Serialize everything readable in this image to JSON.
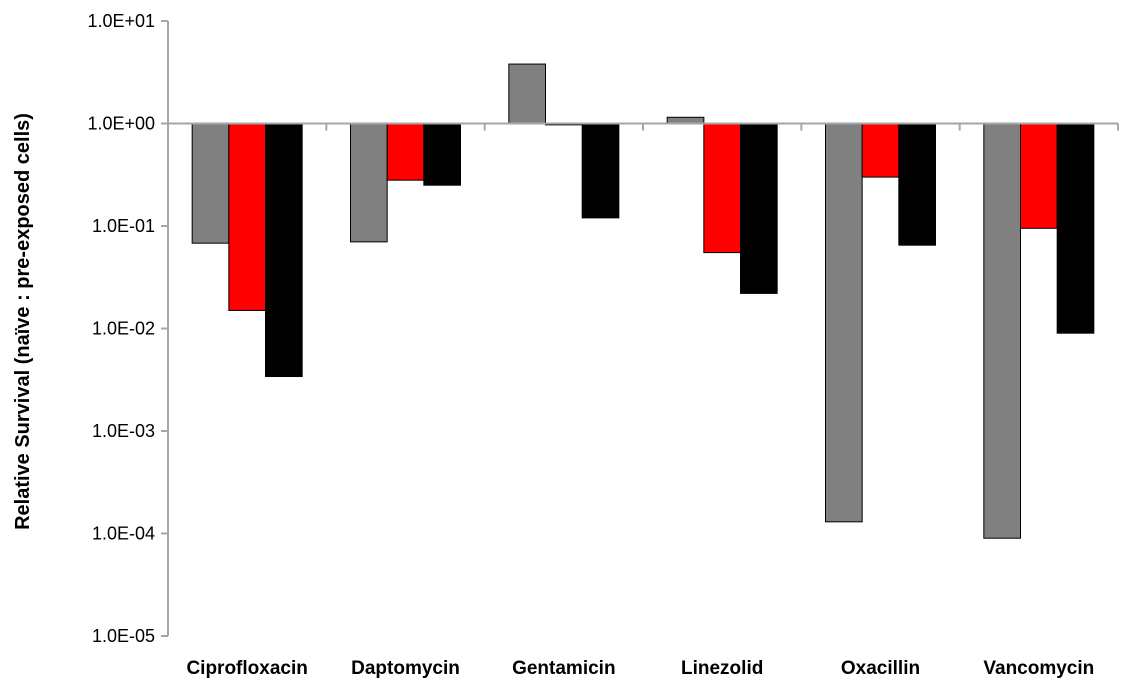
{
  "chart_data": {
    "type": "bar",
    "yscale": "log",
    "baseline": 1,
    "title": "",
    "xlabel": "",
    "ylabel": "Relative Survival (naïve : pre-exposed cells)",
    "ylim": [
      1e-05,
      10
    ],
    "yticks": [
      {
        "value": 10,
        "label": "1.0E+01"
      },
      {
        "value": 1,
        "label": "1.0E+00"
      },
      {
        "value": 0.1,
        "label": "1.0E-01"
      },
      {
        "value": 0.01,
        "label": "1.0E-02"
      },
      {
        "value": 0.001,
        "label": "1.0E-03"
      },
      {
        "value": 0.0001,
        "label": "1.0E-04"
      },
      {
        "value": 1e-05,
        "label": "1.0E-05"
      }
    ],
    "grid": false,
    "legend": "none",
    "categories": [
      "Ciprofloxacin",
      "Daptomycin",
      "Gentamicin",
      "Linezolid",
      "Oxacillin",
      "Vancomycin"
    ],
    "series": [
      {
        "color": "#808080",
        "values": [
          0.068,
          0.07,
          3.8,
          1.15,
          0.00013,
          9e-05
        ]
      },
      {
        "color": "#ff0000",
        "values": [
          0.015,
          0.28,
          0.97,
          0.055,
          0.3,
          0.095
        ]
      },
      {
        "color": "#000000",
        "values": [
          0.0034,
          0.25,
          0.12,
          0.022,
          0.065,
          0.009
        ]
      }
    ],
    "colors": {
      "axis": "#a6a6a6",
      "bar_outline": "#000000"
    }
  }
}
